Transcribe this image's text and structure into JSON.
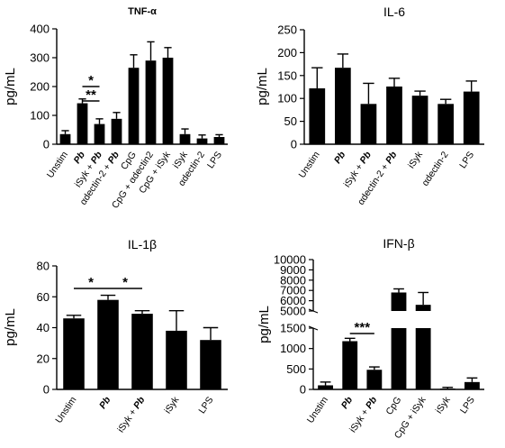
{
  "chart_data": [
    {
      "type": "bar",
      "title": "TNF-α",
      "ylabel": "pg/mL",
      "ylim": [
        0,
        400
      ],
      "yticks": [
        0,
        100,
        200,
        300,
        400
      ],
      "categories": [
        "Unstim",
        "Pb",
        "iSyk + Pb",
        "αdectin-2 + Pb",
        "CpG",
        "CpG + αdectin2",
        "CpG + iSyk",
        "iSyk",
        "αdectin-2",
        "LPS"
      ],
      "values": [
        35,
        142,
        70,
        88,
        265,
        290,
        300,
        35,
        20,
        25
      ],
      "errors": [
        12,
        15,
        18,
        22,
        45,
        65,
        35,
        18,
        12,
        8
      ],
      "significance": [
        {
          "from": "Pb",
          "to": "iSyk + Pb",
          "label": "*"
        },
        {
          "from": "Pb",
          "to": "iSyk + Pb",
          "label": "**"
        }
      ]
    },
    {
      "type": "bar",
      "title": "IL-6",
      "ylabel": "pg/mL",
      "ylim": [
        0,
        250
      ],
      "yticks": [
        0,
        50,
        100,
        150,
        200,
        250
      ],
      "categories": [
        "Unstim",
        "Pb",
        "iSyk + Pb",
        "αdectin-2 + Pb",
        "iSyk",
        "αdectin-2",
        "LPS"
      ],
      "values": [
        122,
        167,
        88,
        126,
        106,
        88,
        115
      ],
      "errors": [
        45,
        30,
        45,
        18,
        10,
        10,
        23
      ],
      "significance": []
    },
    {
      "type": "bar",
      "title": "IL-1β",
      "ylabel": "pg/mL",
      "ylim": [
        0,
        80
      ],
      "yticks": [
        0,
        20,
        40,
        60,
        80
      ],
      "categories": [
        "Unstim",
        "Pb",
        "iSyk + Pb",
        "iSyk",
        "LPS"
      ],
      "values": [
        46,
        58,
        49,
        38,
        32
      ],
      "errors": [
        2,
        3,
        2,
        13,
        8
      ],
      "significance": [
        {
          "from": "Unstim",
          "to": "Pb",
          "label": "*"
        },
        {
          "from": "Pb",
          "to": "iSyk + Pb",
          "label": "*"
        }
      ]
    },
    {
      "type": "bar",
      "title": "IFN-β",
      "ylabel": "pg/mL",
      "axis_break": {
        "lower_range": [
          0,
          1500
        ],
        "upper_range": [
          5000,
          10000
        ]
      },
      "yticks_lower": [
        0,
        500,
        1000,
        1500
      ],
      "yticks_upper": [
        5000,
        6000,
        7000,
        8000,
        9000,
        10000
      ],
      "categories": [
        "Unstim",
        "Pb",
        "iSyk + Pb",
        "CpG",
        "CpG + iSyk",
        "iSyk",
        "LPS"
      ],
      "values": [
        100,
        1180,
        480,
        6800,
        5600,
        20,
        180
      ],
      "errors": [
        80,
        70,
        70,
        350,
        1200,
        30,
        100
      ],
      "significance": [
        {
          "from": "Pb",
          "to": "iSyk + Pb",
          "label": "***"
        }
      ]
    }
  ]
}
